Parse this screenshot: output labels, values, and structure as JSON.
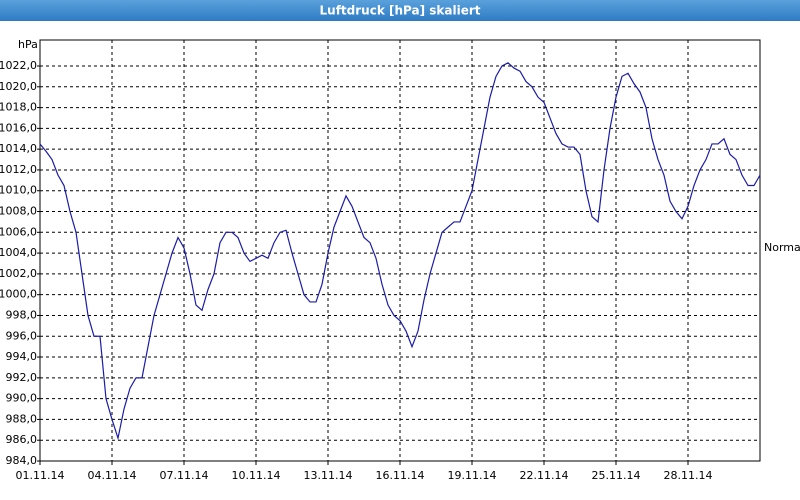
{
  "chart_data": {
    "type": "line",
    "title": "Luftdruck [hPa] skaliert",
    "y_label": "hPa",
    "normal_label": "Normal",
    "color": "#1c1ca8",
    "grid": true,
    "categories": [
      "01.11.14",
      null,
      null,
      null,
      null,
      null,
      null,
      null,
      null,
      null,
      null,
      null,
      "04.11.14",
      null,
      null,
      null,
      null,
      null,
      null,
      null,
      null,
      null,
      null,
      null,
      "07.11.14",
      null,
      null,
      null,
      null,
      null,
      null,
      null,
      null,
      null,
      null,
      null,
      "10.11.14",
      null,
      null,
      null,
      null,
      null,
      null,
      null,
      null,
      null,
      null,
      null,
      "13.11.14",
      null,
      null,
      null,
      null,
      null,
      null,
      null,
      null,
      null,
      null,
      null,
      "16.11.14",
      null,
      null,
      null,
      null,
      null,
      null,
      null,
      null,
      null,
      null,
      null,
      "19.11.14",
      null,
      null,
      null,
      null,
      null,
      null,
      null,
      null,
      null,
      null,
      null,
      "22.11.14",
      null,
      null,
      null,
      null,
      null,
      null,
      null,
      null,
      null,
      null,
      null,
      "25.11.14",
      null,
      null,
      null,
      null,
      null,
      null,
      null,
      null,
      null,
      null,
      null,
      "28.11.14",
      null,
      null,
      null,
      null,
      null,
      null,
      null,
      null,
      null,
      null,
      null,
      null
    ],
    "values": [
      1014.5,
      1013.8,
      1013,
      1011.5,
      1010.5,
      1008,
      1006,
      1002,
      998,
      996,
      996,
      990,
      988,
      986.2,
      989,
      991,
      992,
      992,
      995,
      998,
      1000,
      1002,
      1004,
      1005.5,
      1004.5,
      1002,
      999,
      998.5,
      1000.5,
      1002,
      1005,
      1006,
      1006,
      1005.5,
      1004,
      1003.2,
      1003.5,
      1003.8,
      1003.5,
      1005,
      1006,
      1006.2,
      1004,
      1002,
      1000,
      999.3,
      999.3,
      1001,
      1004,
      1006.5,
      1008,
      1009.5,
      1008.5,
      1007,
      1005.5,
      1005,
      1003.5,
      1001,
      999,
      998,
      997.5,
      996.5,
      995,
      996.5,
      999.5,
      1002,
      1004,
      1006,
      1006.5,
      1007,
      1007,
      1008.5,
      1010,
      1013,
      1016,
      1019,
      1021,
      1022,
      1022.3,
      1021.8,
      1021.5,
      1020.5,
      1020,
      1019,
      1018.5,
      1017,
      1015.5,
      1014.5,
      1014.2,
      1014.2,
      1013.5,
      1010,
      1007.5,
      1007,
      1012,
      1016,
      1019,
      1021,
      1021.3,
      1020.3,
      1019.5,
      1018,
      1015,
      1013,
      1011.5,
      1009,
      1008,
      1007.3,
      1008.5,
      1010.5,
      1012,
      1013,
      1014.5,
      1014.5,
      1015,
      1013.5,
      1013,
      1011.5,
      1010.5,
      1010.5,
      1011.5
    ],
    "ylim": [
      984,
      1024.5
    ],
    "yticks": [
      {
        "value": 984,
        "label": "984,0"
      },
      {
        "value": 986,
        "label": "986,0"
      },
      {
        "value": 988,
        "label": "988,0"
      },
      {
        "value": 990,
        "label": "990,0"
      },
      {
        "value": 992,
        "label": "992,0"
      },
      {
        "value": 994,
        "label": "994,0"
      },
      {
        "value": 996,
        "label": "996,0"
      },
      {
        "value": 998,
        "label": "998,0"
      },
      {
        "value": 1000,
        "label": "1000,0"
      },
      {
        "value": 1002,
        "label": "1002,0"
      },
      {
        "value": 1004,
        "label": "1004,0"
      },
      {
        "value": 1006,
        "label": "1006,0"
      },
      {
        "value": 1008,
        "label": "1008,0"
      },
      {
        "value": 1010,
        "label": "1010,0"
      },
      {
        "value": 1012,
        "label": "1012,0"
      },
      {
        "value": 1014,
        "label": "1014,0"
      },
      {
        "value": 1016,
        "label": "1016,0"
      },
      {
        "value": 1018,
        "label": "1018,0"
      },
      {
        "value": 1020,
        "label": "1020,0"
      },
      {
        "value": 1022,
        "label": "1022,0"
      }
    ]
  }
}
